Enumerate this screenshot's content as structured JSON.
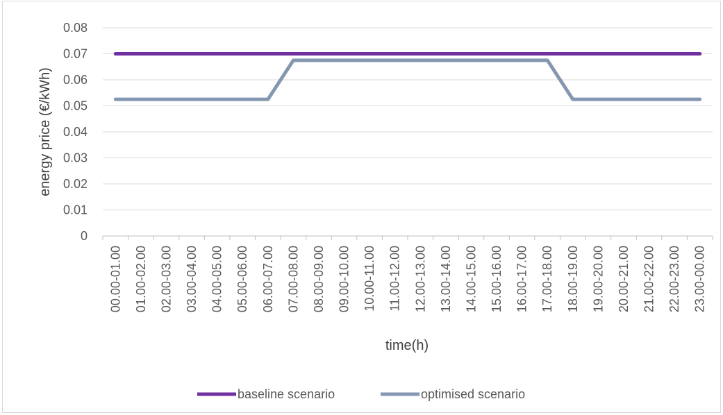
{
  "chart_data": {
    "type": "line",
    "title": "",
    "xlabel": "time(h)",
    "ylabel": "energy price (€/kWh)",
    "ylim": [
      0,
      0.08
    ],
    "yticks": [
      "0",
      "0.01",
      "0.02",
      "0.03",
      "0.04",
      "0.05",
      "0.06",
      "0.07",
      "0.08"
    ],
    "grid": "horizontal",
    "legend_position": "bottom",
    "categories": [
      "00.00-01.00",
      "01.00-02.00",
      "02.00-03.00",
      "03.00-04.00",
      "04.00-05.00",
      "05.00-06.00",
      "06.00-07.00",
      "07.00-08.00",
      "08.00-09.00",
      "09.00-10.00",
      "10.00-11.00",
      "11.00-12.00",
      "12.00-13.00",
      "13.00-14.00",
      "14.00-15.00",
      "15.00-16.00",
      "16.00-17.00",
      "17.00-18.00",
      "18.00-19.00",
      "19.00-20.00",
      "20.00-21.00",
      "21.00-22.00",
      "22.00-23.00",
      "23.00-00.00"
    ],
    "series": [
      {
        "name": "baseline scenario",
        "color": "#7030a0",
        "values": [
          0.07,
          0.07,
          0.07,
          0.07,
          0.07,
          0.07,
          0.07,
          0.07,
          0.07,
          0.07,
          0.07,
          0.07,
          0.07,
          0.07,
          0.07,
          0.07,
          0.07,
          0.07,
          0.07,
          0.07,
          0.07,
          0.07,
          0.07,
          0.07
        ]
      },
      {
        "name": "optimised scenario",
        "color": "#8497b0",
        "values": [
          0.0525,
          0.0525,
          0.0525,
          0.0525,
          0.0525,
          0.0525,
          0.0525,
          0.0675,
          0.0675,
          0.0675,
          0.0675,
          0.0675,
          0.0675,
          0.0675,
          0.0675,
          0.0675,
          0.0675,
          0.0675,
          0.0525,
          0.0525,
          0.0525,
          0.0525,
          0.0525,
          0.0525
        ]
      }
    ]
  }
}
